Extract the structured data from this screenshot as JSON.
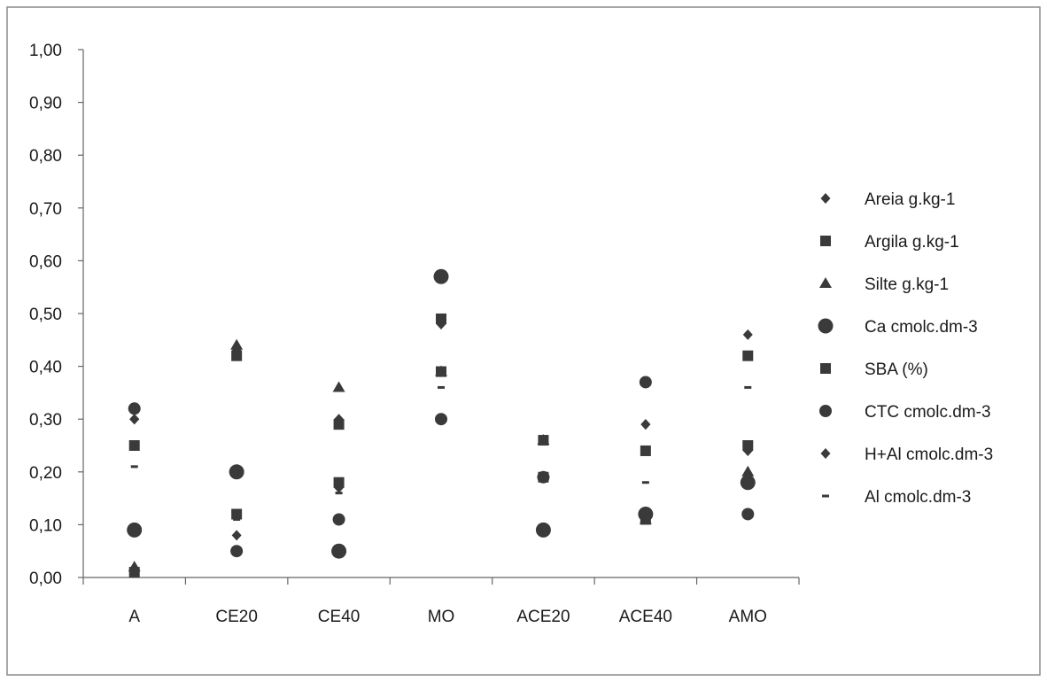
{
  "chart_data": {
    "type": "scatter",
    "title": "",
    "xlabel": "",
    "ylabel": "",
    "ylim": [
      0,
      1
    ],
    "y_ticks": [
      "1,00",
      "0,90",
      "0,80",
      "0,70",
      "0,60",
      "0,50",
      "0,40",
      "0,30",
      "0,20",
      "0,10",
      "0,00"
    ],
    "y_tick_values": [
      1.0,
      0.9,
      0.8,
      0.7,
      0.6,
      0.5,
      0.4,
      0.3,
      0.2,
      0.1,
      0.0
    ],
    "categories": [
      "A",
      "CE20",
      "CE40",
      "MO",
      "ACE20",
      "ACE40",
      "AMO"
    ],
    "grid": false,
    "legend_position": "right",
    "marker_color": "#3a3a3a",
    "series": [
      {
        "name": "Areia  g.kg-1",
        "marker": "diamond",
        "values": [
          0.3,
          0.08,
          0.17,
          0.48,
          0.26,
          0.29,
          0.46
        ]
      },
      {
        "name": "Argila  g.kg-1",
        "marker": "square",
        "values": [
          0.25,
          0.42,
          0.29,
          0.49,
          0.19,
          0.24,
          0.42
        ]
      },
      {
        "name": "Silte  g.kg-1",
        "marker": "triangle",
        "values": [
          0.02,
          0.44,
          0.36,
          0.39,
          0.26,
          0.11,
          0.2
        ]
      },
      {
        "name": "Ca cmolc.dm-3",
        "marker": "circle-large",
        "values": [
          0.09,
          0.2,
          0.05,
          0.57,
          0.09,
          0.12,
          0.18
        ]
      },
      {
        "name": "SBA   (%)",
        "marker": "square",
        "values": [
          0.01,
          0.12,
          0.18,
          0.39,
          0.26,
          0.11,
          0.25
        ]
      },
      {
        "name": "CTC cmolc.dm-3",
        "marker": "circle",
        "values": [
          0.32,
          0.05,
          0.11,
          0.3,
          0.19,
          0.37,
          0.12
        ]
      },
      {
        "name": "H+Al cmolc.dm-3",
        "marker": "diamond",
        "values": [
          0.3,
          0.43,
          0.3,
          0.48,
          0.26,
          0.29,
          0.24
        ]
      },
      {
        "name": "Al cmolc.dm-3",
        "marker": "dash",
        "values": [
          0.21,
          0.11,
          0.16,
          0.36,
          0.19,
          0.18,
          0.36
        ]
      }
    ]
  }
}
